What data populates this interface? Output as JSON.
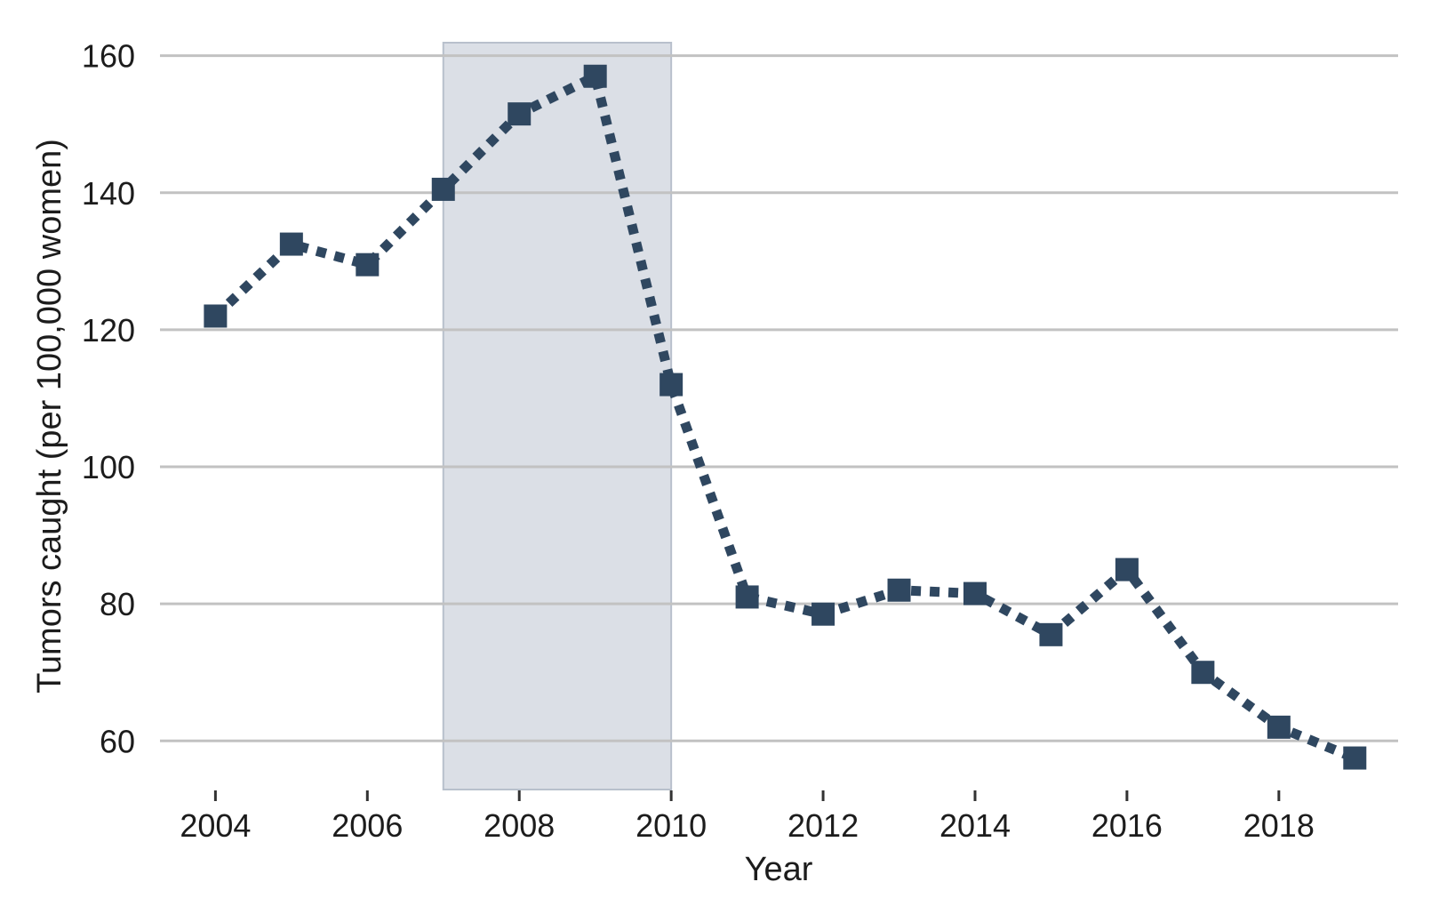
{
  "figure": {
    "background": "#ffffff",
    "accent_color": "#2f4760",
    "gridline_color": "#c2c2c2",
    "tick_mark_color": "#333333",
    "text_color": "#1c1c1c",
    "band_fill": "#dbdfe6",
    "band_border": "#b8c0cc"
  },
  "chart_data": {
    "type": "line",
    "title": "",
    "xlabel": "Year",
    "ylabel": "Tumors caught (per 100,000 women)",
    "series": [
      {
        "name": "Tumors caught per 100,000 women",
        "x": [
          2004,
          2005,
          2006,
          2007,
          2008,
          2009,
          2010,
          2011,
          2012,
          2013,
          2014,
          2015,
          2016,
          2017,
          2018,
          2019
        ],
        "values": [
          122,
          132.5,
          129.5,
          140.5,
          151.5,
          157,
          112,
          81,
          78.5,
          82,
          81.5,
          75.5,
          85,
          70,
          62,
          57.5
        ],
        "line_style": "dotted",
        "marker": "square"
      }
    ],
    "x_ticks": [
      2004,
      2006,
      2008,
      2010,
      2012,
      2014,
      2016,
      2018
    ],
    "y_ticks": [
      60,
      80,
      100,
      120,
      140,
      160
    ],
    "xlim": [
      2003.27,
      2019.57
    ],
    "ylim": [
      52.9,
      161.9
    ],
    "grid": "horizontal",
    "legend_position": "none",
    "shaded_region": {
      "x_start": 2007,
      "x_end": 2010
    }
  }
}
